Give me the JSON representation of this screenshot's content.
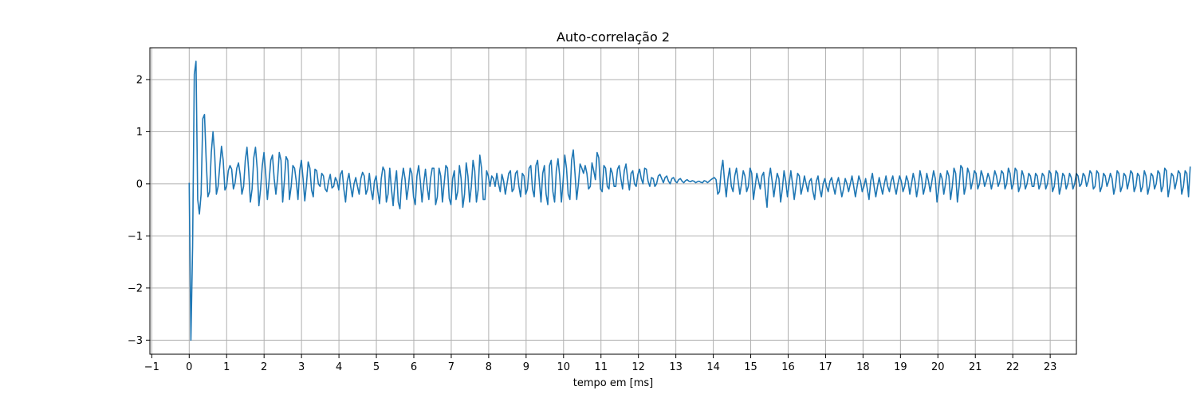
{
  "chart_data": {
    "type": "line",
    "title": "Auto-correlação 2",
    "xlabel": "tempo em [ms]",
    "ylabel": "",
    "xlim": [
      -1.05,
      23.7
    ],
    "ylim": [
      -3.27,
      2.61
    ],
    "xticks": [
      -1,
      0,
      1,
      2,
      3,
      4,
      5,
      6,
      7,
      8,
      9,
      10,
      11,
      12,
      13,
      14,
      15,
      16,
      17,
      18,
      19,
      20,
      21,
      22,
      23
    ],
    "yticks": [
      -3,
      -2,
      -1,
      0,
      1,
      2
    ],
    "grid": true,
    "series": [
      {
        "color": "#1f77b4",
        "sample_step_ms": 0.0454,
        "values": [
          0.02,
          -3.0,
          -1.2,
          2.1,
          2.35,
          -0.3,
          -0.58,
          -0.2,
          1.25,
          1.33,
          0.45,
          -0.25,
          -0.15,
          0.6,
          1.0,
          0.55,
          -0.2,
          -0.05,
          0.35,
          0.72,
          0.45,
          -0.12,
          -0.05,
          0.25,
          0.35,
          0.28,
          -0.1,
          0.02,
          0.3,
          0.4,
          0.18,
          -0.2,
          -0.05,
          0.45,
          0.7,
          0.25,
          -0.35,
          -0.1,
          0.5,
          0.7,
          0.3,
          -0.42,
          -0.1,
          0.35,
          0.6,
          0.2,
          -0.3,
          0.05,
          0.45,
          0.55,
          0.1,
          -0.2,
          0.1,
          0.6,
          0.45,
          -0.35,
          0.05,
          0.52,
          0.45,
          -0.3,
          -0.05,
          0.35,
          0.3,
          0.05,
          -0.3,
          0.25,
          0.45,
          0.1,
          -0.33,
          0.0,
          0.42,
          0.3,
          -0.12,
          -0.25,
          0.28,
          0.25,
          0.0,
          -0.05,
          0.2,
          0.15,
          -0.1,
          -0.15,
          0.05,
          0.18,
          -0.08,
          -0.05,
          0.12,
          0.05,
          -0.12,
          0.18,
          0.25,
          -0.1,
          -0.35,
          0.05,
          0.2,
          -0.05,
          -0.25,
          0.0,
          0.12,
          -0.05,
          -0.2,
          0.1,
          0.22,
          0.15,
          -0.2,
          -0.1,
          0.2,
          -0.12,
          -0.3,
          0.05,
          0.15,
          -0.15,
          -0.38,
          0.1,
          0.32,
          0.25,
          -0.35,
          -0.2,
          0.3,
          -0.1,
          -0.42,
          0.0,
          0.25,
          -0.35,
          -0.48,
          0.05,
          0.3,
          0.1,
          -0.3,
          -0.05,
          0.3,
          0.2,
          -0.25,
          -0.4,
          0.15,
          0.35,
          0.05,
          -0.35,
          0.0,
          0.28,
          -0.05,
          -0.3,
          0.1,
          0.3,
          0.3,
          -0.4,
          -0.25,
          0.3,
          0.15,
          -0.35,
          0.0,
          0.35,
          0.3,
          -0.28,
          -0.4,
          0.1,
          0.25,
          -0.3,
          -0.15,
          0.35,
          0.1,
          -0.45,
          -0.2,
          0.4,
          0.15,
          -0.35,
          -0.05,
          0.45,
          0.25,
          -0.35,
          -0.12,
          0.55,
          0.3,
          -0.3,
          -0.3,
          0.25,
          0.15,
          -0.05,
          0.15,
          0.1,
          -0.05,
          0.2,
          0.0,
          -0.15,
          0.18,
          0.05,
          -0.2,
          0.0,
          0.2,
          0.25,
          -0.15,
          -0.1,
          0.2,
          0.25,
          -0.05,
          -0.25,
          0.2,
          0.15,
          -0.2,
          -0.1,
          0.3,
          0.35,
          -0.1,
          -0.25,
          0.35,
          0.45,
          0.05,
          -0.35,
          0.2,
          0.35,
          -0.2,
          -0.4,
          0.35,
          0.45,
          -0.15,
          -0.35,
          0.25,
          0.48,
          0.15,
          -0.35,
          0.05,
          0.55,
          0.3,
          -0.2,
          -0.3,
          0.45,
          0.65,
          0.2,
          -0.3,
          0.0,
          0.38,
          0.3,
          0.2,
          0.35,
          0.2,
          -0.1,
          -0.05,
          0.4,
          0.25,
          0.08,
          0.6,
          0.5,
          -0.1,
          -0.15,
          0.35,
          0.3,
          -0.05,
          -0.1,
          0.3,
          0.2,
          -0.05,
          -0.05,
          0.28,
          0.35,
          0.1,
          -0.1,
          0.25,
          0.38,
          0.1,
          -0.12,
          0.2,
          0.25,
          0.0,
          -0.05,
          0.18,
          0.28,
          0.1,
          0.0,
          0.3,
          0.28,
          0.05,
          -0.05,
          0.12,
          0.1,
          -0.05,
          0.0,
          0.15,
          0.18,
          0.1,
          0.02,
          0.12,
          0.15,
          0.05,
          0.0,
          0.1,
          0.12,
          0.05,
          0.02,
          0.08,
          0.1,
          0.05,
          0.02,
          0.06,
          0.08,
          0.05,
          0.04,
          0.06,
          0.05,
          0.02,
          0.04,
          0.05,
          0.03,
          0.02,
          0.06,
          0.05,
          0.02,
          0.05,
          0.08,
          0.1,
          0.12,
          0.08,
          -0.2,
          -0.15,
          0.25,
          0.45,
          0.05,
          -0.25,
          0.1,
          0.3,
          -0.05,
          -0.15,
          0.15,
          0.3,
          0.05,
          -0.2,
          0.0,
          0.25,
          0.15,
          -0.15,
          -0.05,
          0.3,
          0.2,
          -0.3,
          -0.05,
          0.2,
          0.05,
          -0.1,
          0.15,
          0.22,
          -0.15,
          -0.45,
          0.1,
          0.3,
          0.05,
          -0.25,
          0.0,
          0.2,
          0.1,
          -0.35,
          -0.1,
          0.25,
          0.05,
          -0.25,
          0.0,
          0.25,
          0.0,
          -0.3,
          -0.05,
          0.2,
          0.15,
          -0.2,
          -0.05,
          0.15,
          0.0,
          -0.15,
          0.05,
          0.1,
          -0.15,
          -0.3,
          0.05,
          0.15,
          -0.1,
          -0.25,
          0.0,
          0.1,
          -0.05,
          -0.15,
          0.05,
          0.12,
          -0.05,
          -0.2,
          0.0,
          0.12,
          -0.05,
          -0.25,
          -0.1,
          0.1,
          0.0,
          -0.15,
          0.0,
          0.15,
          -0.05,
          -0.25,
          -0.05,
          0.15,
          0.05,
          -0.15,
          -0.05,
          0.1,
          -0.1,
          -0.3,
          0.05,
          0.2,
          -0.05,
          -0.25,
          -0.05,
          0.12,
          -0.05,
          -0.2,
          0.0,
          0.15,
          -0.05,
          -0.15,
          0.05,
          0.15,
          -0.05,
          -0.2,
          0.0,
          0.15,
          0.05,
          -0.15,
          -0.05,
          0.15,
          0.05,
          -0.2,
          0.0,
          0.2,
          0.05,
          -0.25,
          -0.05,
          0.25,
          0.1,
          -0.2,
          -0.05,
          0.2,
          0.05,
          -0.15,
          0.05,
          0.25,
          0.1,
          -0.35,
          -0.1,
          0.2,
          0.1,
          -0.2,
          0.0,
          0.25,
          0.15,
          -0.3,
          -0.05,
          0.3,
          0.2,
          -0.35,
          -0.05,
          0.35,
          0.3,
          -0.2,
          -0.05,
          0.3,
          0.2,
          -0.1,
          0.05,
          0.25,
          0.2,
          -0.1,
          0.0,
          0.25,
          0.15,
          -0.05,
          0.05,
          0.2,
          0.1,
          -0.1,
          0.05,
          0.25,
          0.15,
          -0.05,
          0.05,
          0.25,
          0.2,
          -0.1,
          0.0,
          0.3,
          0.2,
          -0.1,
          0.0,
          0.3,
          0.25,
          -0.15,
          -0.05,
          0.25,
          0.15,
          -0.1,
          0.0,
          0.2,
          0.15,
          -0.05,
          -0.05,
          0.2,
          0.15,
          -0.1,
          0.0,
          0.2,
          0.15,
          -0.1,
          0.0,
          0.25,
          0.2,
          -0.15,
          -0.05,
          0.25,
          0.2,
          -0.2,
          -0.05,
          0.2,
          0.15,
          -0.1,
          0.0,
          0.2,
          0.12,
          -0.1,
          0.0,
          0.2,
          0.15,
          -0.05,
          0.0,
          0.2,
          0.15,
          -0.05,
          0.05,
          0.25,
          0.2,
          -0.1,
          -0.05,
          0.25,
          0.2,
          -0.15,
          -0.05,
          0.2,
          0.15,
          -0.05,
          0.05,
          0.2,
          0.1,
          -0.2,
          -0.05,
          0.25,
          0.2,
          -0.15,
          -0.05,
          0.2,
          0.15,
          -0.1,
          0.05,
          0.25,
          0.2,
          -0.15,
          -0.05,
          0.2,
          0.15,
          -0.15,
          -0.05,
          0.25,
          0.15,
          -0.2,
          -0.05,
          0.2,
          0.15,
          -0.1,
          0.0,
          0.25,
          0.2,
          -0.15,
          -0.05,
          0.3,
          0.25,
          -0.25,
          -0.05,
          0.2,
          0.15,
          -0.1,
          0.05,
          0.25,
          0.2,
          -0.2,
          -0.05,
          0.25,
          0.2,
          -0.25,
          0.33
        ]
      }
    ]
  }
}
